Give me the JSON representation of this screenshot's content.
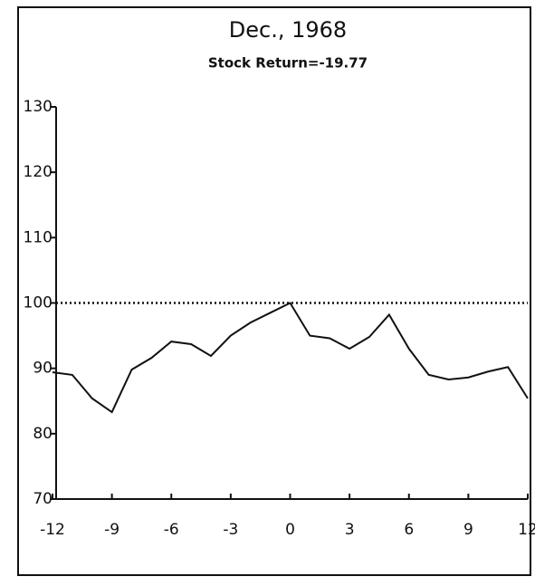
{
  "chart_data": {
    "type": "line",
    "title": "Dec., 1968",
    "subtitle": "Stock Return=-19.77",
    "x": [
      -12,
      -11,
      -10,
      -9,
      -8,
      -7,
      -6,
      -5,
      -4,
      -3,
      -2,
      -1,
      0,
      1,
      2,
      3,
      4,
      5,
      6,
      7,
      8,
      9,
      10,
      11,
      12
    ],
    "series": [
      {
        "color": "#111111",
        "values": [
          89.4,
          89,
          85.4,
          83.3,
          89.8,
          91.6,
          94.1,
          93.7,
          91.9,
          95,
          97,
          98.5,
          100,
          95,
          94.6,
          93,
          94.8,
          98.2,
          93,
          89,
          88.3,
          88.6,
          89.5,
          90.2,
          85.4
        ]
      }
    ],
    "reference_line": 100,
    "xlim": [
      -12,
      12
    ],
    "xticks": [
      -12,
      -9,
      -6,
      -3,
      0,
      3,
      6,
      9,
      12
    ],
    "ylim": [
      70,
      130
    ],
    "yticks": [
      70,
      80,
      90,
      100,
      110,
      120,
      130
    ],
    "grid": false
  }
}
